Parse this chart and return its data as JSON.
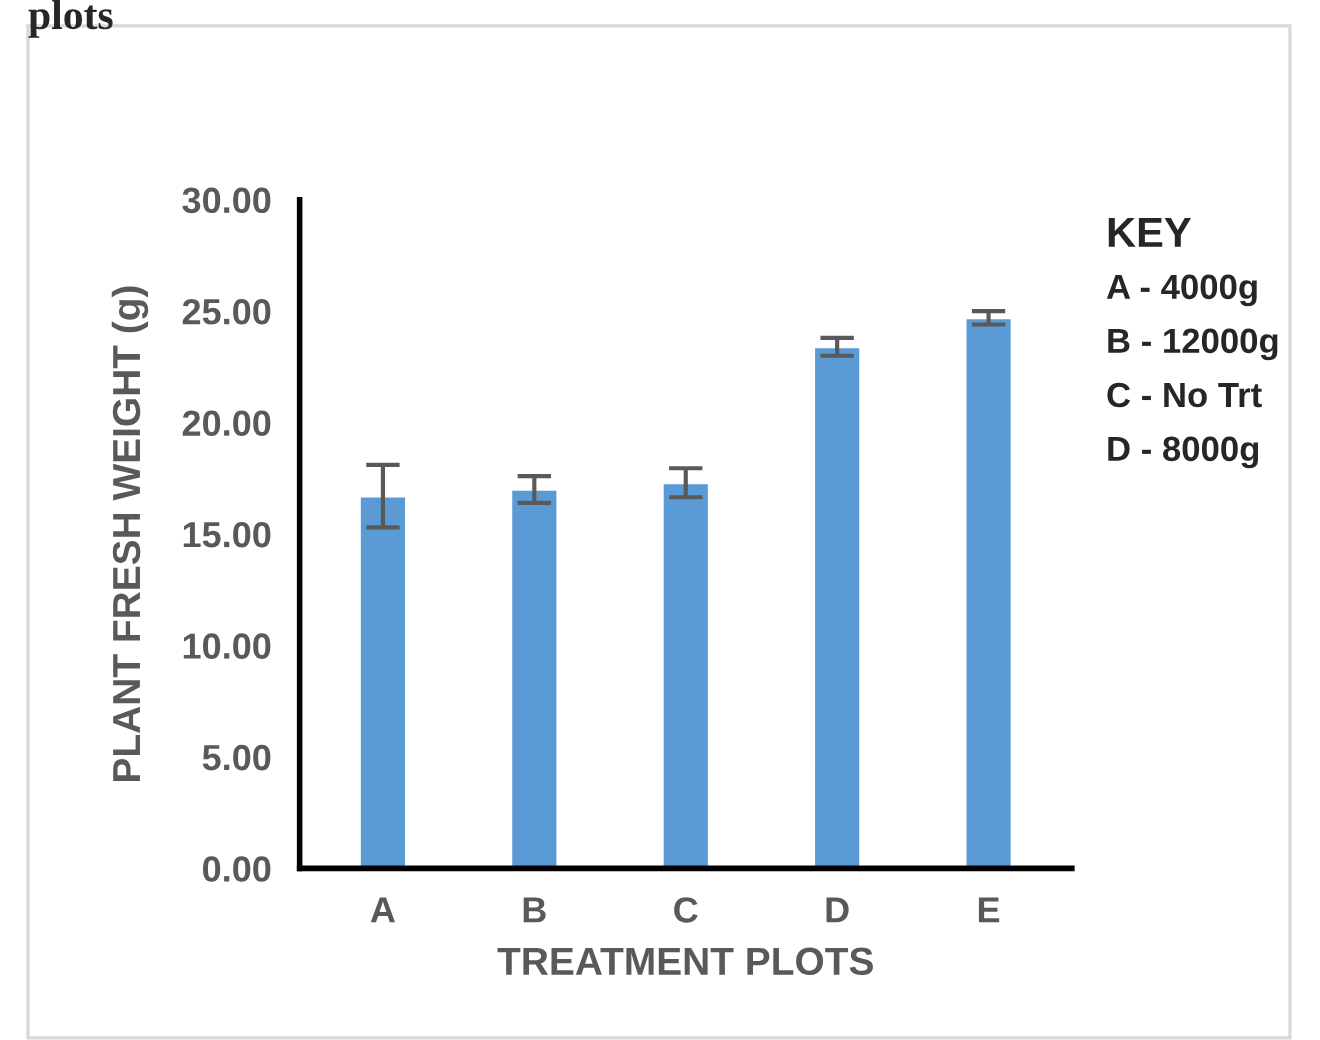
{
  "chart_data": {
    "type": "bar",
    "title": "plots",
    "xlabel": "TREATMENT PLOTS",
    "ylabel": "PLANT FRESH WEIGHT (g)",
    "categories": [
      "A",
      "B",
      "C",
      "D",
      "E"
    ],
    "series": [
      {
        "color": "#5b9bd5",
        "values": [
          16.7,
          17.0,
          17.3,
          23.4,
          24.7
        ],
        "errors": [
          1.4,
          0.6,
          0.65,
          0.4,
          0.3
        ]
      }
    ],
    "ylim": [
      0,
      30
    ],
    "yticks": [
      {
        "value": 0,
        "label": "0.00"
      },
      {
        "value": 5,
        "label": "5.00"
      },
      {
        "value": 10,
        "label": "10.00"
      },
      {
        "value": 15,
        "label": "15.00"
      },
      {
        "value": 20,
        "label": "20.00"
      },
      {
        "value": 25,
        "label": "25.00"
      },
      {
        "value": 30,
        "label": "30.00"
      }
    ],
    "annotations": [
      "KEY",
      "A - 4000g",
      "B - 12000g",
      "C - No Trt",
      "D - 8000g"
    ],
    "grid": false,
    "legend": false
  }
}
